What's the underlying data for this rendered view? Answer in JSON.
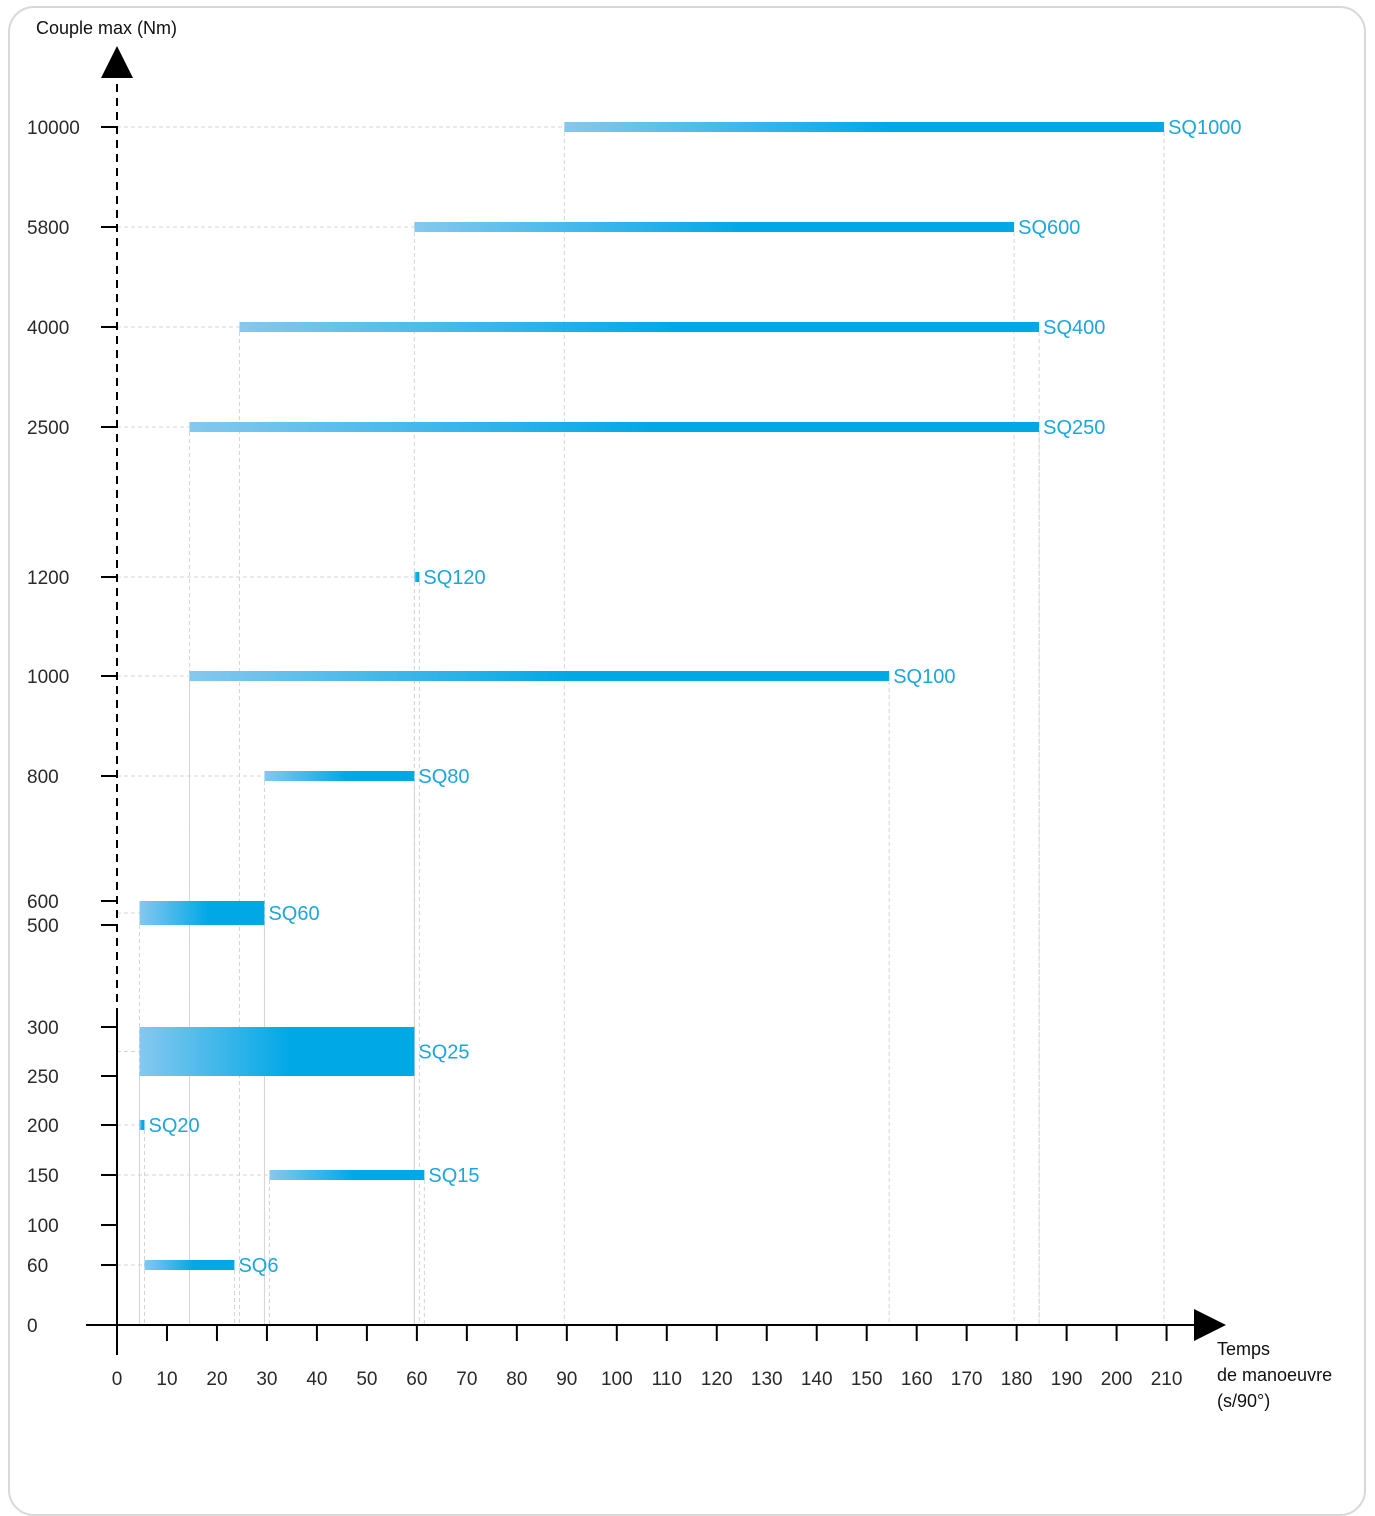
{
  "chart_data": {
    "type": "bar",
    "subtype": "horizontal-range",
    "ylabel": "Couple max (Nm)",
    "xlabel": [
      "Temps",
      "de manoeuvre",
      "(s/90°)"
    ],
    "x_ticks": [
      0,
      10,
      20,
      30,
      40,
      50,
      60,
      70,
      80,
      90,
      100,
      110,
      120,
      130,
      140,
      150,
      160,
      170,
      180,
      190,
      200,
      210
    ],
    "xlim": [
      0,
      215
    ],
    "y_ticks": [
      "0",
      "60",
      "100",
      "150",
      "200",
      "250",
      "300",
      "500",
      "600",
      "800",
      "1000",
      "1200",
      "2500",
      "4000",
      "5800",
      "10000"
    ],
    "y_scale": "categorical (non-linear)",
    "grid": "dashed guide lines",
    "series": [
      {
        "name": "SQ6",
        "y": 60,
        "x_start": 5.5,
        "x_end": 23.5
      },
      {
        "name": "SQ15",
        "y": 150,
        "x_start": 30.5,
        "x_end": 61.5
      },
      {
        "name": "SQ20",
        "y": 200,
        "x_start": 4.5,
        "x_end": 5.5
      },
      {
        "name": "SQ25",
        "y_range": [
          250,
          300
        ],
        "x_start": 4.5,
        "x_end": 59.5
      },
      {
        "name": "SQ60",
        "y_range": [
          500,
          600
        ],
        "x_start": 4.5,
        "x_end": 29.5
      },
      {
        "name": "SQ80",
        "y": 800,
        "x_start": 29.5,
        "x_end": 59.5
      },
      {
        "name": "SQ100",
        "y": 1000,
        "x_start": 14.5,
        "x_end": 154.5
      },
      {
        "name": "SQ120",
        "y": 1200,
        "x_start": 59.5,
        "x_end": 60.5
      },
      {
        "name": "SQ250",
        "y": 2500,
        "x_start": 14.5,
        "x_end": 184.5
      },
      {
        "name": "SQ400",
        "y": 4000,
        "x_start": 24.5,
        "x_end": 184.5
      },
      {
        "name": "SQ600",
        "y": 5800,
        "x_start": 59.5,
        "x_end": 179.5
      },
      {
        "name": "SQ1000",
        "y": 10000,
        "x_start": 89.5,
        "x_end": 209.5
      }
    ],
    "colors": {
      "bar_start": "#85c8ef",
      "bar_end": "#00a8e6",
      "label": "#1ca6de",
      "axis": "#000000",
      "grid": "#d4d4d4"
    }
  }
}
